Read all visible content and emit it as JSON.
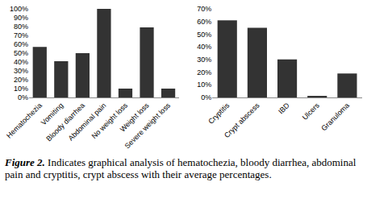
{
  "chart_data": [
    {
      "type": "bar",
      "categories": [
        "Hematochezia",
        "Vomiting",
        "Bloody diarrhea",
        "Abdominal pain",
        "No weight loss",
        "Weight loss",
        "Severe weight loss"
      ],
      "values": [
        57,
        41,
        50,
        100,
        10,
        79,
        10
      ],
      "color": "#333333",
      "ylim": [
        0,
        100
      ],
      "yticks": [
        {
          "value": 0,
          "label": "0%"
        },
        {
          "value": 10,
          "label": "10%"
        },
        {
          "value": 20,
          "label": "20%"
        },
        {
          "value": 30,
          "label": "30%"
        },
        {
          "value": 40,
          "label": "40%"
        },
        {
          "value": 50,
          "label": "50%"
        },
        {
          "value": 60,
          "label": "60%"
        },
        {
          "value": 70,
          "label": "70%"
        },
        {
          "value": 80,
          "label": "80%"
        },
        {
          "value": 90,
          "label": "90%"
        },
        {
          "value": 100,
          "label": "100%"
        }
      ],
      "grid": false
    },
    {
      "type": "bar",
      "categories": [
        "Cryptitis",
        "Crypt abscess",
        "IBD",
        "Ulcers",
        "Granuloma"
      ],
      "values": [
        61,
        55,
        30,
        1,
        19
      ],
      "color": "#333333",
      "ylim": [
        0,
        70
      ],
      "yticks": [
        {
          "value": 0,
          "label": "0%"
        },
        {
          "value": 10,
          "label": "10%"
        },
        {
          "value": 20,
          "label": "20%"
        },
        {
          "value": 30,
          "label": "30%"
        },
        {
          "value": 40,
          "label": "40%"
        },
        {
          "value": 50,
          "label": "50%"
        },
        {
          "value": 60,
          "label": "60%"
        },
        {
          "value": 70,
          "label": "70%"
        }
      ],
      "grid": false
    }
  ],
  "caption": {
    "label": "Figure 2.",
    "text": "Indicates graphical analysis of hematochezia, bloody diarrhea, abdominal pain and cryptitis, crypt abscess with their average percentages."
  }
}
